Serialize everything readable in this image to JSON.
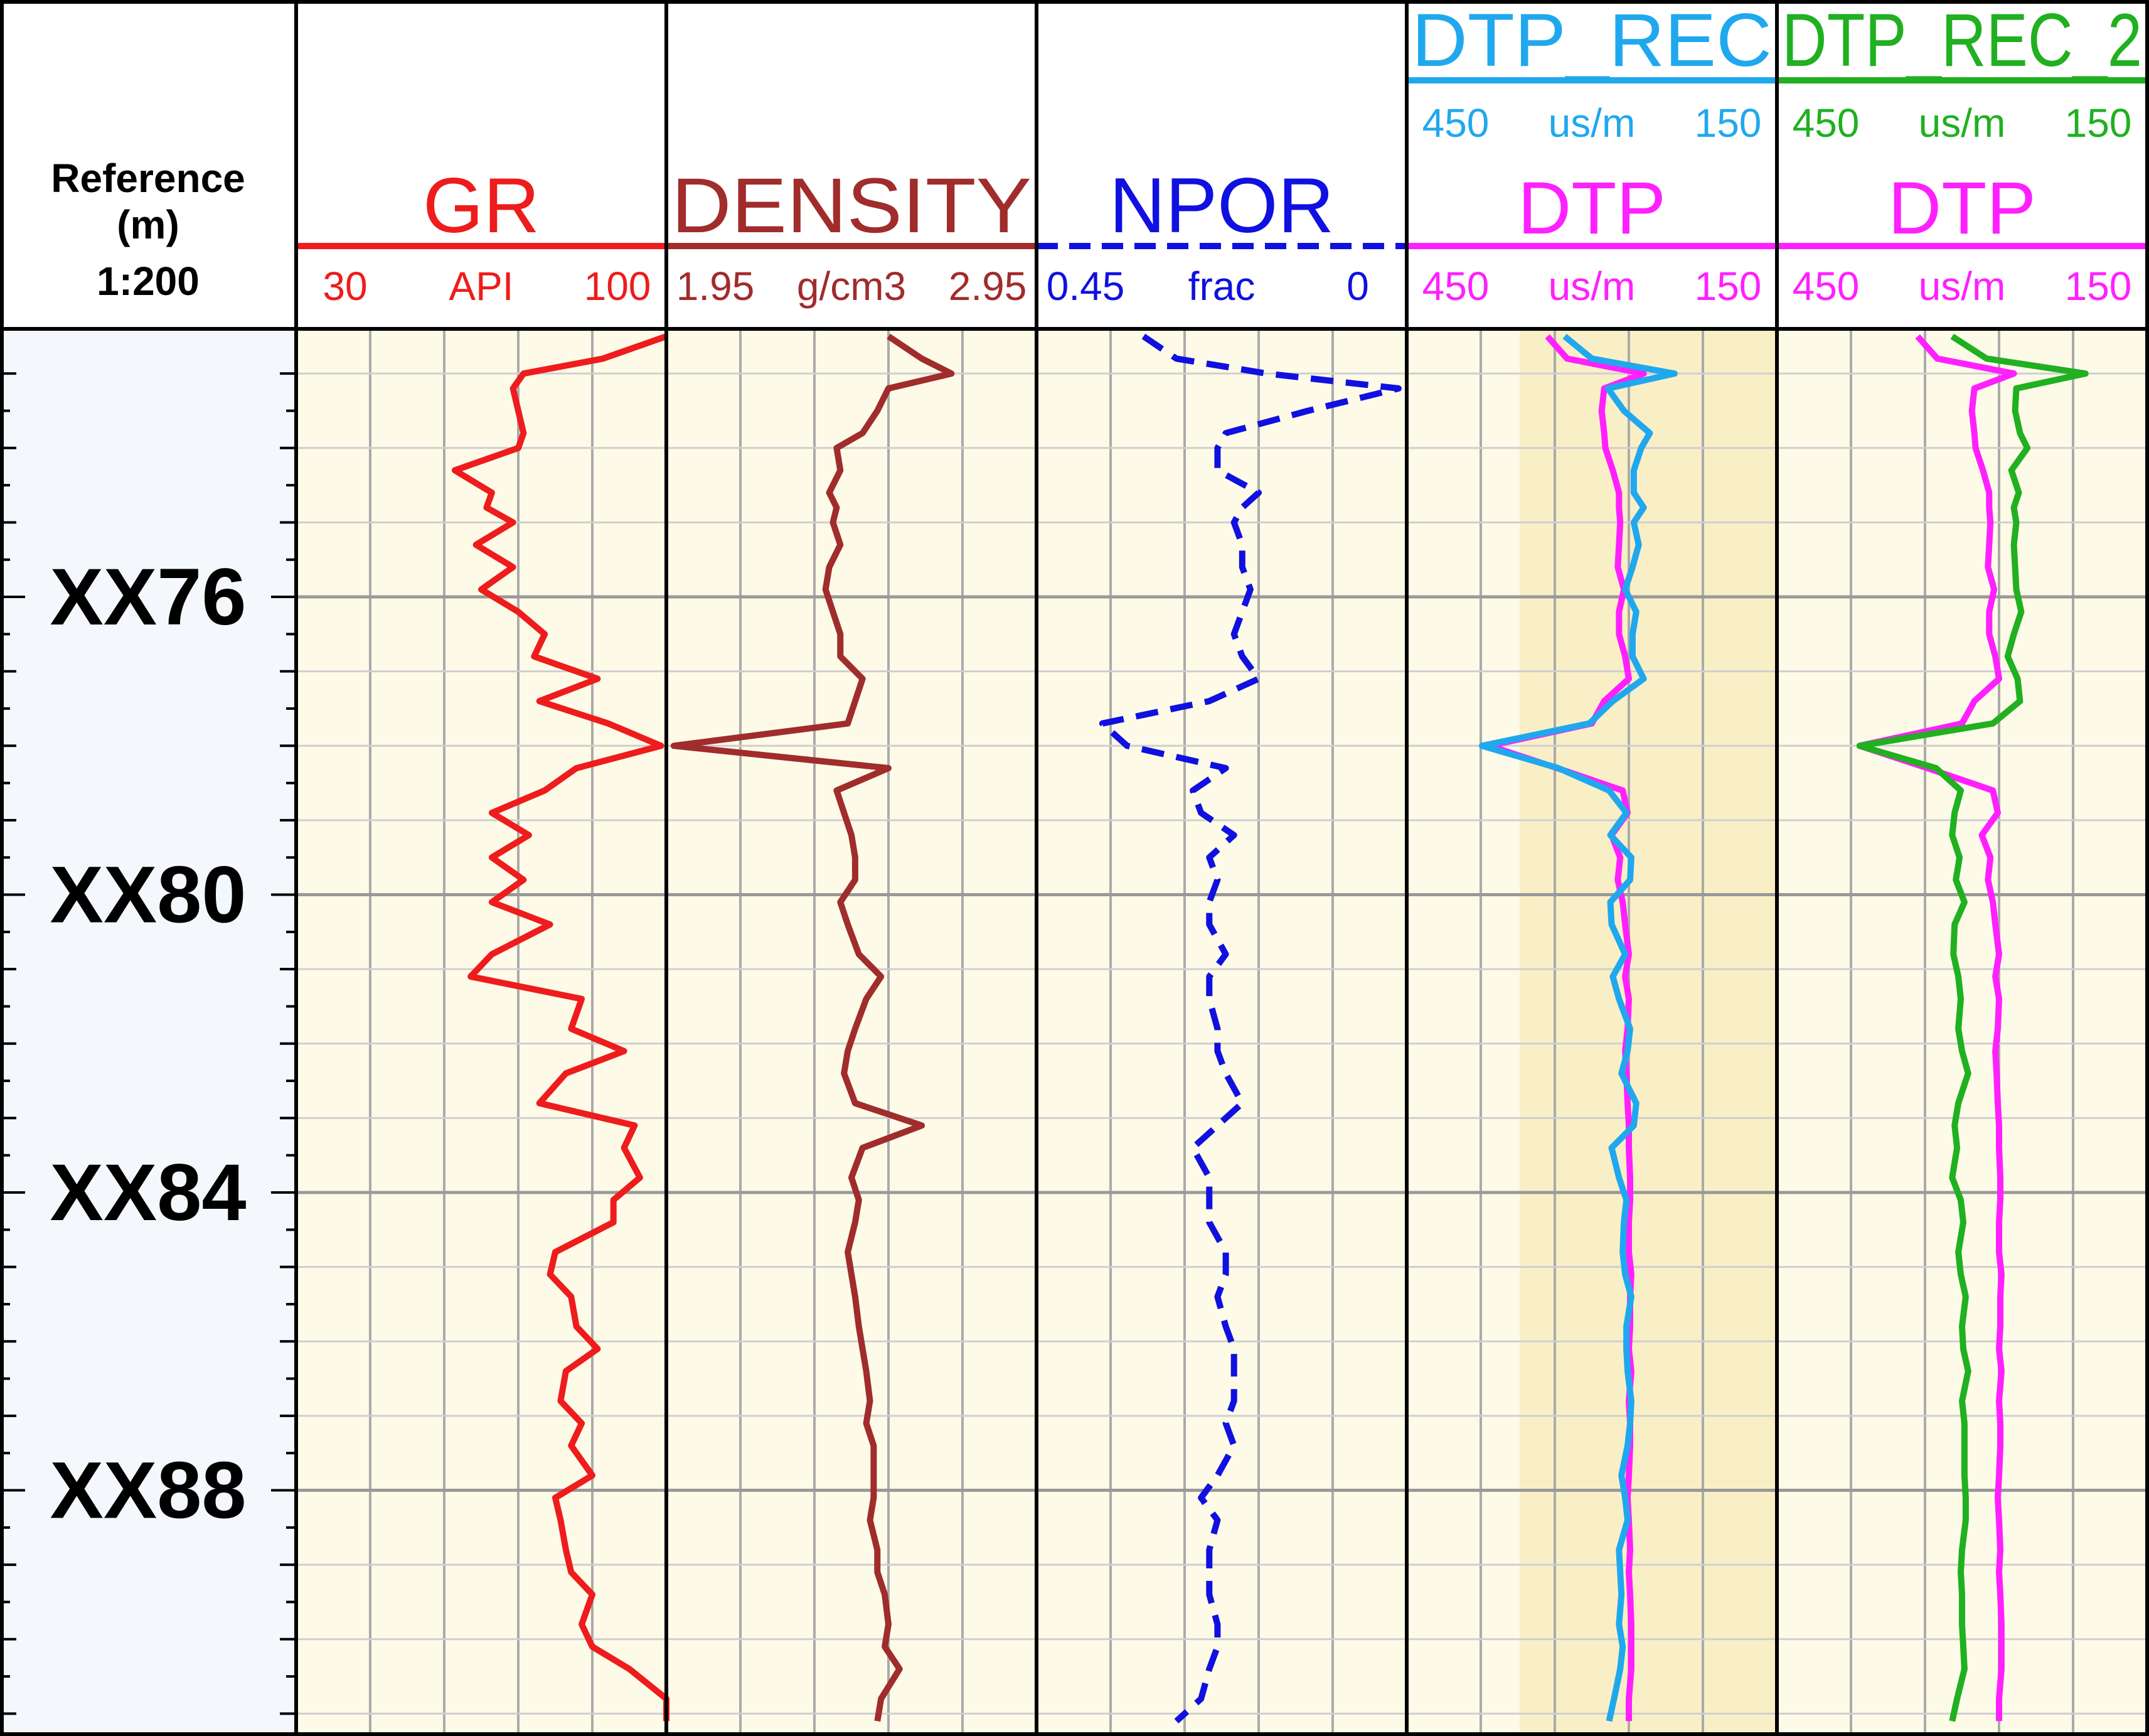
{
  "reference": {
    "title_line1": "Reference",
    "title_line2": "(m)",
    "title_line3": "1:200",
    "depth_labels": [
      "XX76",
      "XX80",
      "XX84",
      "XX88"
    ],
    "label_depths": [
      76,
      80,
      84,
      88
    ],
    "depth_range": [
      72.4,
      91.3
    ]
  },
  "colors": {
    "GR": "#ee1c1c",
    "DENSITY": "#a02c2c",
    "NPOR": "#1010e0",
    "DTP": "#ff20ff",
    "DTP_REC": "#20a8ee",
    "DTP_REC_2": "#20b020",
    "panel_bg": "#fdfae8",
    "shade_bg": "#f9efc6",
    "grid": "#aaaaaa"
  },
  "tracks": [
    {
      "id": "GR",
      "shaded": false,
      "curves": [
        {
          "name": "GR",
          "min_label": "30",
          "unit": "API",
          "max_label": "100",
          "left": 30,
          "right": 100,
          "color_key": "GR",
          "dashed": false
        }
      ]
    },
    {
      "id": "DENSITY",
      "shaded": false,
      "curves": [
        {
          "name": "DENSITY",
          "min_label": "1.95",
          "unit": "g/cm3",
          "max_label": "2.95",
          "left": 1.95,
          "right": 2.95,
          "color_key": "DENSITY",
          "dashed": false
        }
      ]
    },
    {
      "id": "NPOR",
      "shaded": false,
      "curves": [
        {
          "name": "NPOR",
          "min_label": "0.45",
          "unit": "frac",
          "max_label": "0",
          "left": 0.45,
          "right": 0,
          "color_key": "NPOR",
          "dashed": true
        }
      ]
    },
    {
      "id": "DTP_REC_TRACK",
      "shaded": true,
      "curves": [
        {
          "name": "DTP_REC",
          "min_label": "450",
          "unit": "us/m",
          "max_label": "150",
          "left": 450,
          "right": 150,
          "color_key": "DTP_REC",
          "dashed": false
        },
        {
          "name": "DTP",
          "min_label": "450",
          "unit": "us/m",
          "max_label": "150",
          "left": 450,
          "right": 150,
          "color_key": "DTP",
          "dashed": false
        }
      ]
    },
    {
      "id": "DTP_REC_2_TRACK",
      "shaded": false,
      "curves": [
        {
          "name": "DTP_REC_2",
          "min_label": "450",
          "unit": "us/m",
          "max_label": "150",
          "left": 450,
          "right": 150,
          "color_key": "DTP_REC_2",
          "dashed": false
        },
        {
          "name": "DTP",
          "min_label": "450",
          "unit": "us/m",
          "max_label": "150",
          "left": 450,
          "right": 150,
          "color_key": "DTP",
          "dashed": false
        }
      ]
    }
  ],
  "chart_data": {
    "type": "line",
    "title": "",
    "depth_unit": "m",
    "scale": "1:200",
    "depth": [
      72.5,
      72.8,
      73.0,
      73.2,
      73.5,
      73.8,
      74.0,
      74.3,
      74.6,
      74.8,
      75.0,
      75.3,
      75.6,
      75.9,
      76.2,
      76.5,
      76.8,
      77.1,
      77.4,
      77.7,
      78.0,
      78.3,
      78.6,
      78.9,
      79.2,
      79.5,
      79.8,
      80.1,
      80.4,
      80.8,
      81.1,
      81.4,
      81.8,
      82.1,
      82.4,
      82.8,
      83.1,
      83.4,
      83.8,
      84.1,
      84.4,
      84.8,
      85.1,
      85.4,
      85.8,
      86.1,
      86.4,
      86.8,
      87.1,
      87.4,
      87.8,
      88.1,
      88.4,
      88.8,
      89.1,
      89.4,
      89.8,
      90.1,
      90.4,
      90.8,
      91.1
    ],
    "series": [
      {
        "name": "GR",
        "units": "API",
        "scale": [
          30,
          100
        ],
        "values": [
          100,
          88,
          73,
          71,
          72,
          73,
          72,
          60,
          67,
          66,
          71,
          64,
          71,
          65,
          72,
          77,
          75,
          87,
          76,
          89,
          99,
          83,
          77,
          67,
          74,
          67,
          73,
          67,
          78,
          67,
          63,
          84,
          82,
          92,
          81,
          76,
          94,
          92,
          95,
          90,
          90,
          79,
          78,
          82,
          83,
          87,
          81,
          80,
          84,
          82,
          86,
          79,
          80,
          81,
          82,
          86,
          84,
          86,
          93,
          100,
          100
        ]
      },
      {
        "name": "DENSITY",
        "units": "g/cm3",
        "scale": [
          1.95,
          2.95
        ],
        "values": [
          2.55,
          2.64,
          2.72,
          2.55,
          2.52,
          2.48,
          2.41,
          2.42,
          2.39,
          2.41,
          2.4,
          2.42,
          2.39,
          2.38,
          2.4,
          2.42,
          2.42,
          2.48,
          2.46,
          2.44,
          1.97,
          2.55,
          2.41,
          2.43,
          2.45,
          2.46,
          2.46,
          2.42,
          2.44,
          2.47,
          2.53,
          2.49,
          2.46,
          2.44,
          2.43,
          2.46,
          2.64,
          2.48,
          2.45,
          2.47,
          2.46,
          2.44,
          2.45,
          2.46,
          2.47,
          2.48,
          2.49,
          2.5,
          2.49,
          2.51,
          2.51,
          2.51,
          2.5,
          2.52,
          2.52,
          2.54,
          2.55,
          2.54,
          2.58,
          2.53,
          2.52
        ]
      },
      {
        "name": "NPOR",
        "units": "frac",
        "scale": [
          0.45,
          0
        ],
        "values": [
          0.32,
          0.28,
          0.17,
          0.01,
          0.12,
          0.22,
          0.23,
          0.23,
          0.18,
          0.2,
          0.21,
          0.2,
          0.2,
          0.19,
          0.2,
          0.21,
          0.2,
          0.18,
          0.24,
          0.37,
          0.34,
          0.22,
          0.26,
          0.25,
          0.21,
          0.24,
          0.23,
          0.24,
          0.24,
          0.22,
          0.24,
          0.24,
          0.23,
          0.23,
          0.22,
          0.2,
          0.23,
          0.26,
          0.24,
          0.24,
          0.24,
          0.22,
          0.22,
          0.23,
          0.22,
          0.21,
          0.21,
          0.21,
          0.22,
          0.21,
          0.23,
          0.25,
          0.23,
          0.24,
          0.24,
          0.24,
          0.23,
          0.23,
          0.24,
          0.25,
          0.28
        ]
      },
      {
        "name": "DTP_REC",
        "units": "us/m",
        "scale": [
          450,
          150
        ],
        "values": [
          322,
          300,
          233,
          287,
          274,
          253,
          260,
          266,
          266,
          258,
          266,
          262,
          267,
          273,
          264,
          267,
          267,
          258,
          283,
          302,
          389,
          327,
          286,
          272,
          285,
          268,
          269,
          285,
          284,
          273,
          283,
          278,
          269,
          271,
          276,
          264,
          266,
          284,
          278,
          272,
          274,
          275,
          273,
          268,
          272,
          272,
          271,
          268,
          269,
          271,
          276,
          273,
          271,
          278,
          277,
          276,
          278,
          275,
          277,
          282,
          286
        ]
      },
      {
        "name": "DTP_REC_2",
        "units": "us/m",
        "scale": [
          450,
          150
        ],
        "values": [
          308,
          280,
          200,
          256,
          257,
          253,
          247,
          260,
          254,
          258,
          256,
          258,
          257,
          256,
          252,
          258,
          263,
          255,
          253,
          275,
          383,
          321,
          301,
          306,
          308,
          302,
          305,
          298,
          306,
          307,
          303,
          301,
          303,
          300,
          295,
          303,
          306,
          304,
          308,
          301,
          299,
          303,
          301,
          297,
          300,
          299,
          295,
          300,
          298,
          298,
          298,
          297,
          297,
          300,
          301,
          300,
          300,
          299,
          298,
          304,
          308
        ]
      },
      {
        "name": "DTP",
        "units": "us/m",
        "scale": [
          450,
          150
        ],
        "values": [
          336,
          320,
          258,
          290,
          292,
          290,
          289,
          283,
          278,
          278,
          277,
          278,
          279,
          274,
          278,
          278,
          273,
          270,
          290,
          300,
          383,
          328,
          275,
          271,
          284,
          277,
          279,
          275,
          273,
          270,
          273,
          270,
          271,
          273,
          272,
          271,
          270,
          270,
          269,
          269,
          270,
          270,
          268,
          269,
          269,
          270,
          268,
          270,
          269,
          269,
          270,
          271,
          270,
          269,
          270,
          269,
          268,
          268,
          268,
          270,
          270
        ]
      }
    ]
  }
}
